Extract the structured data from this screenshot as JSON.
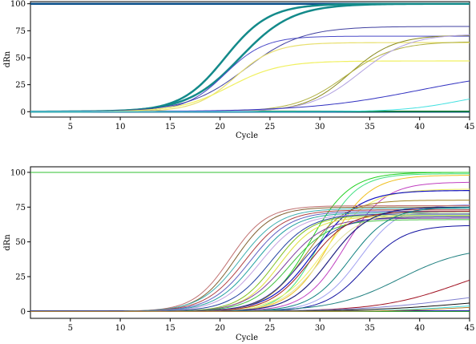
{
  "chart_data": [
    {
      "type": "line",
      "xlabel": "Cycle",
      "ylabel": "dRn",
      "xlim": [
        1,
        45
      ],
      "ylim": [
        -5,
        102
      ],
      "xticks": [
        "5",
        "10",
        "15",
        "20",
        "25",
        "30",
        "35",
        "40",
        "45"
      ],
      "yticks": [
        "0",
        "25",
        "50",
        "75",
        "100"
      ],
      "grid": false,
      "series": [
        {
          "color": "#0a4f8a",
          "width": 2.5,
          "kind": "flat",
          "y": 100
        },
        {
          "color": "#0a4f8a",
          "width": 2.5,
          "kind": "flat",
          "y": 0
        },
        {
          "color": "#1a8f1a",
          "width": 1.2,
          "kind": "flat",
          "y": 0.3
        },
        {
          "color": "#138a8a",
          "width": 2.5,
          "kind": "sigmoid",
          "ymax": 100,
          "x0": 20.5,
          "k": 0.45
        },
        {
          "color": "#138a8a",
          "width": 2.5,
          "kind": "sigmoid",
          "ymax": 100,
          "x0": 22,
          "k": 0.38
        },
        {
          "color": "#4a4ac8",
          "width": 1,
          "kind": "sigmoid",
          "ymax": 70,
          "x0": 20.5,
          "k": 0.5
        },
        {
          "color": "#4040a0",
          "width": 1,
          "kind": "sigmoid",
          "ymax": 79,
          "x0": 22.5,
          "k": 0.35
        },
        {
          "color": "#e8e070",
          "width": 1.2,
          "kind": "sigmoid",
          "ymax": 64,
          "x0": 21.5,
          "k": 0.5
        },
        {
          "color": "#f0f060",
          "width": 1.2,
          "kind": "sigmoid",
          "ymax": 47,
          "x0": 21,
          "k": 0.4
        },
        {
          "color": "#8a8a20",
          "width": 1,
          "kind": "sigmoid",
          "ymax": 71,
          "x0": 33,
          "k": 0.45
        },
        {
          "color": "#b0b040",
          "width": 1,
          "kind": "sigmoid",
          "ymax": 65,
          "x0": 32.5,
          "k": 0.4
        },
        {
          "color": "#b0a0e0",
          "width": 1,
          "kind": "sigmoid",
          "ymax": 72,
          "x0": 34,
          "k": 0.4
        },
        {
          "color": "#3030c0",
          "width": 1,
          "kind": "sigmoid",
          "ymax": 40,
          "x0": 40,
          "k": 0.18
        },
        {
          "color": "#40e0e0",
          "width": 1,
          "kind": "sigmoid",
          "ymax": 20,
          "x0": 44,
          "k": 0.35
        }
      ]
    },
    {
      "type": "line",
      "xlabel": "Cycle",
      "ylabel": "dRn",
      "xlim": [
        1,
        45
      ],
      "ylim": [
        -5,
        104
      ],
      "xticks": [
        "5",
        "10",
        "15",
        "20",
        "25",
        "30",
        "35",
        "40",
        "45"
      ],
      "yticks": [
        "0",
        "25",
        "50",
        "75",
        "100"
      ],
      "grid": false,
      "series": [
        {
          "color": "#30c030",
          "width": 1,
          "kind": "flat",
          "y": 100
        },
        {
          "color": "#20a020",
          "width": 1,
          "kind": "flat",
          "y": 0
        },
        {
          "color": "#2020a0",
          "width": 1,
          "kind": "flat",
          "y": 0.5
        },
        {
          "color": "#20d020",
          "width": 1,
          "kind": "sigmoid",
          "ymax": 100,
          "x0": 29,
          "k": 0.5
        },
        {
          "color": "#40e080",
          "width": 1,
          "kind": "sigmoid",
          "ymax": 99,
          "x0": 30,
          "k": 0.55
        },
        {
          "color": "#f0c020",
          "width": 1,
          "kind": "sigmoid",
          "ymax": 98,
          "x0": 31,
          "k": 0.5
        },
        {
          "color": "#c040c0",
          "width": 1,
          "kind": "sigmoid",
          "ymax": 93,
          "x0": 32.5,
          "k": 0.5
        },
        {
          "color": "#f0f060",
          "width": 1,
          "kind": "sigmoid",
          "ymax": 88,
          "x0": 30.5,
          "k": 0.45
        },
        {
          "color": "#1010c0",
          "width": 1.2,
          "kind": "sigmoid",
          "ymax": 87,
          "x0": 29.5,
          "k": 0.45
        },
        {
          "color": "#a08020",
          "width": 1,
          "kind": "sigmoid",
          "ymax": 80,
          "x0": 28.5,
          "k": 0.5
        },
        {
          "color": "#a0a0f0",
          "width": 1,
          "kind": "sigmoid",
          "ymax": 77,
          "x0": 34,
          "k": 0.5
        },
        {
          "color": "#c07070",
          "width": 1,
          "kind": "sigmoid",
          "ymax": 76,
          "x0": 21,
          "k": 0.55
        },
        {
          "color": "#806030",
          "width": 1,
          "kind": "sigmoid",
          "ymax": 75,
          "x0": 21.5,
          "k": 0.55
        },
        {
          "color": "#40b0b0",
          "width": 1,
          "kind": "sigmoid",
          "ymax": 74,
          "x0": 22,
          "k": 0.5
        },
        {
          "color": "#b04040",
          "width": 1,
          "kind": "sigmoid",
          "ymax": 73,
          "x0": 22.5,
          "k": 0.5
        },
        {
          "color": "#6060c0",
          "width": 1,
          "kind": "sigmoid",
          "ymax": 72,
          "x0": 23,
          "k": 0.5
        },
        {
          "color": "#20a0a0",
          "width": 1,
          "kind": "sigmoid",
          "ymax": 71,
          "x0": 23.5,
          "k": 0.5
        },
        {
          "color": "#c0a0e0",
          "width": 1,
          "kind": "sigmoid",
          "ymax": 70,
          "x0": 24,
          "k": 0.5
        },
        {
          "color": "#2040a0",
          "width": 1,
          "kind": "sigmoid",
          "ymax": 70,
          "x0": 25,
          "k": 0.5
        },
        {
          "color": "#80c020",
          "width": 1,
          "kind": "sigmoid",
          "ymax": 69,
          "x0": 25.5,
          "k": 0.55
        },
        {
          "color": "#e0e040",
          "width": 1,
          "kind": "sigmoid",
          "ymax": 68,
          "x0": 26,
          "k": 0.55
        },
        {
          "color": "#8040a0",
          "width": 1,
          "kind": "sigmoid",
          "ymax": 67,
          "x0": 26.5,
          "k": 0.5
        },
        {
          "color": "#40c040",
          "width": 1,
          "kind": "sigmoid",
          "ymax": 66,
          "x0": 27,
          "k": 0.5
        },
        {
          "color": "#3030a0",
          "width": 1,
          "kind": "sigmoid",
          "ymax": 68,
          "x0": 28,
          "k": 0.5
        },
        {
          "color": "#a02020",
          "width": 1,
          "kind": "sigmoid",
          "ymax": 72,
          "x0": 29,
          "k": 0.5
        },
        {
          "color": "#e0e0a0",
          "width": 1,
          "kind": "sigmoid",
          "ymax": 71,
          "x0": 30,
          "k": 0.5
        },
        {
          "color": "#202080",
          "width": 1.2,
          "kind": "sigmoid",
          "ymax": 75,
          "x0": 31,
          "k": 0.5
        },
        {
          "color": "#1010a0",
          "width": 1,
          "kind": "sigmoid",
          "ymax": 62,
          "x0": 34.5,
          "k": 0.5
        },
        {
          "color": "#108080",
          "width": 1,
          "kind": "sigmoid",
          "ymax": 75,
          "x0": 33,
          "k": 0.5
        },
        {
          "color": "#208080",
          "width": 1,
          "kind": "sigmoid",
          "ymax": 47,
          "x0": 38,
          "k": 0.3
        },
        {
          "color": "#a01020",
          "width": 1,
          "kind": "sigmoid",
          "ymax": 40,
          "x0": 44,
          "k": 0.25
        },
        {
          "color": "#8080d0",
          "width": 1,
          "kind": "sigmoid",
          "ymax": 18,
          "x0": 44,
          "k": 0.2
        },
        {
          "color": "#101010",
          "width": 1,
          "kind": "sigmoid",
          "ymax": 12,
          "x0": 45,
          "k": 0.2
        },
        {
          "color": "#40e0e0",
          "width": 1,
          "kind": "sigmoid",
          "ymax": 6,
          "x0": 43,
          "k": 0.3
        },
        {
          "color": "#c08030",
          "width": 1,
          "kind": "sigmoid",
          "ymax": 5,
          "x0": 44,
          "k": 0.3
        }
      ]
    }
  ]
}
